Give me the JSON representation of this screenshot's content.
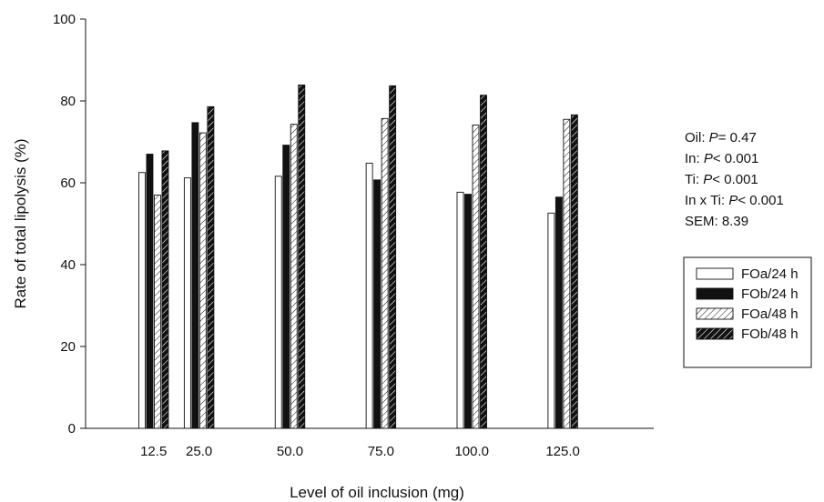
{
  "chart_data": {
    "type": "bar",
    "xlabel": "Level of oil inclusion (mg)",
    "ylabel": "Rate of total lipolysis (%)",
    "ylim": [
      0,
      100
    ],
    "yticks": [
      "0",
      "20",
      "40",
      "60",
      "80",
      "100"
    ],
    "categories": [
      "12.5",
      "25.0",
      "50.0",
      "75.0",
      "100.0",
      "125.0"
    ],
    "category_positions": [
      12.5,
      25.0,
      50.0,
      75.0,
      100.0,
      125.0
    ],
    "x_range": [
      -6.2,
      150
    ],
    "series": [
      {
        "name": "FOa/24 h",
        "pattern": "open",
        "values": [
          62.5,
          61.2,
          61.6,
          64.8,
          57.7,
          52.6
        ]
      },
      {
        "name": "FOb/24 h",
        "pattern": "solid",
        "values": [
          67.0,
          74.7,
          69.2,
          60.7,
          57.2,
          56.5
        ]
      },
      {
        "name": "FOa/48 h",
        "pattern": "hatched-open",
        "values": [
          57.0,
          72.2,
          74.3,
          75.7,
          74.1,
          75.5
        ]
      },
      {
        "name": "FOb/48 h",
        "pattern": "hatched-dark",
        "values": [
          67.8,
          78.6,
          83.9,
          83.7,
          81.4,
          76.6
        ]
      }
    ],
    "legend_position": "right",
    "grid": false,
    "annotations": [
      {
        "label": "Oil: ",
        "symbol": "P",
        "value": "= 0.47"
      },
      {
        "label": "In: ",
        "symbol": "P",
        "value": "< 0.001"
      },
      {
        "label": "Ti: ",
        "symbol": "P",
        "value": "< 0.001"
      },
      {
        "label": "In x Ti: ",
        "symbol": "P",
        "value": "< 0.001"
      },
      {
        "label": "SEM: 8.39",
        "symbol": "",
        "value": ""
      }
    ]
  }
}
